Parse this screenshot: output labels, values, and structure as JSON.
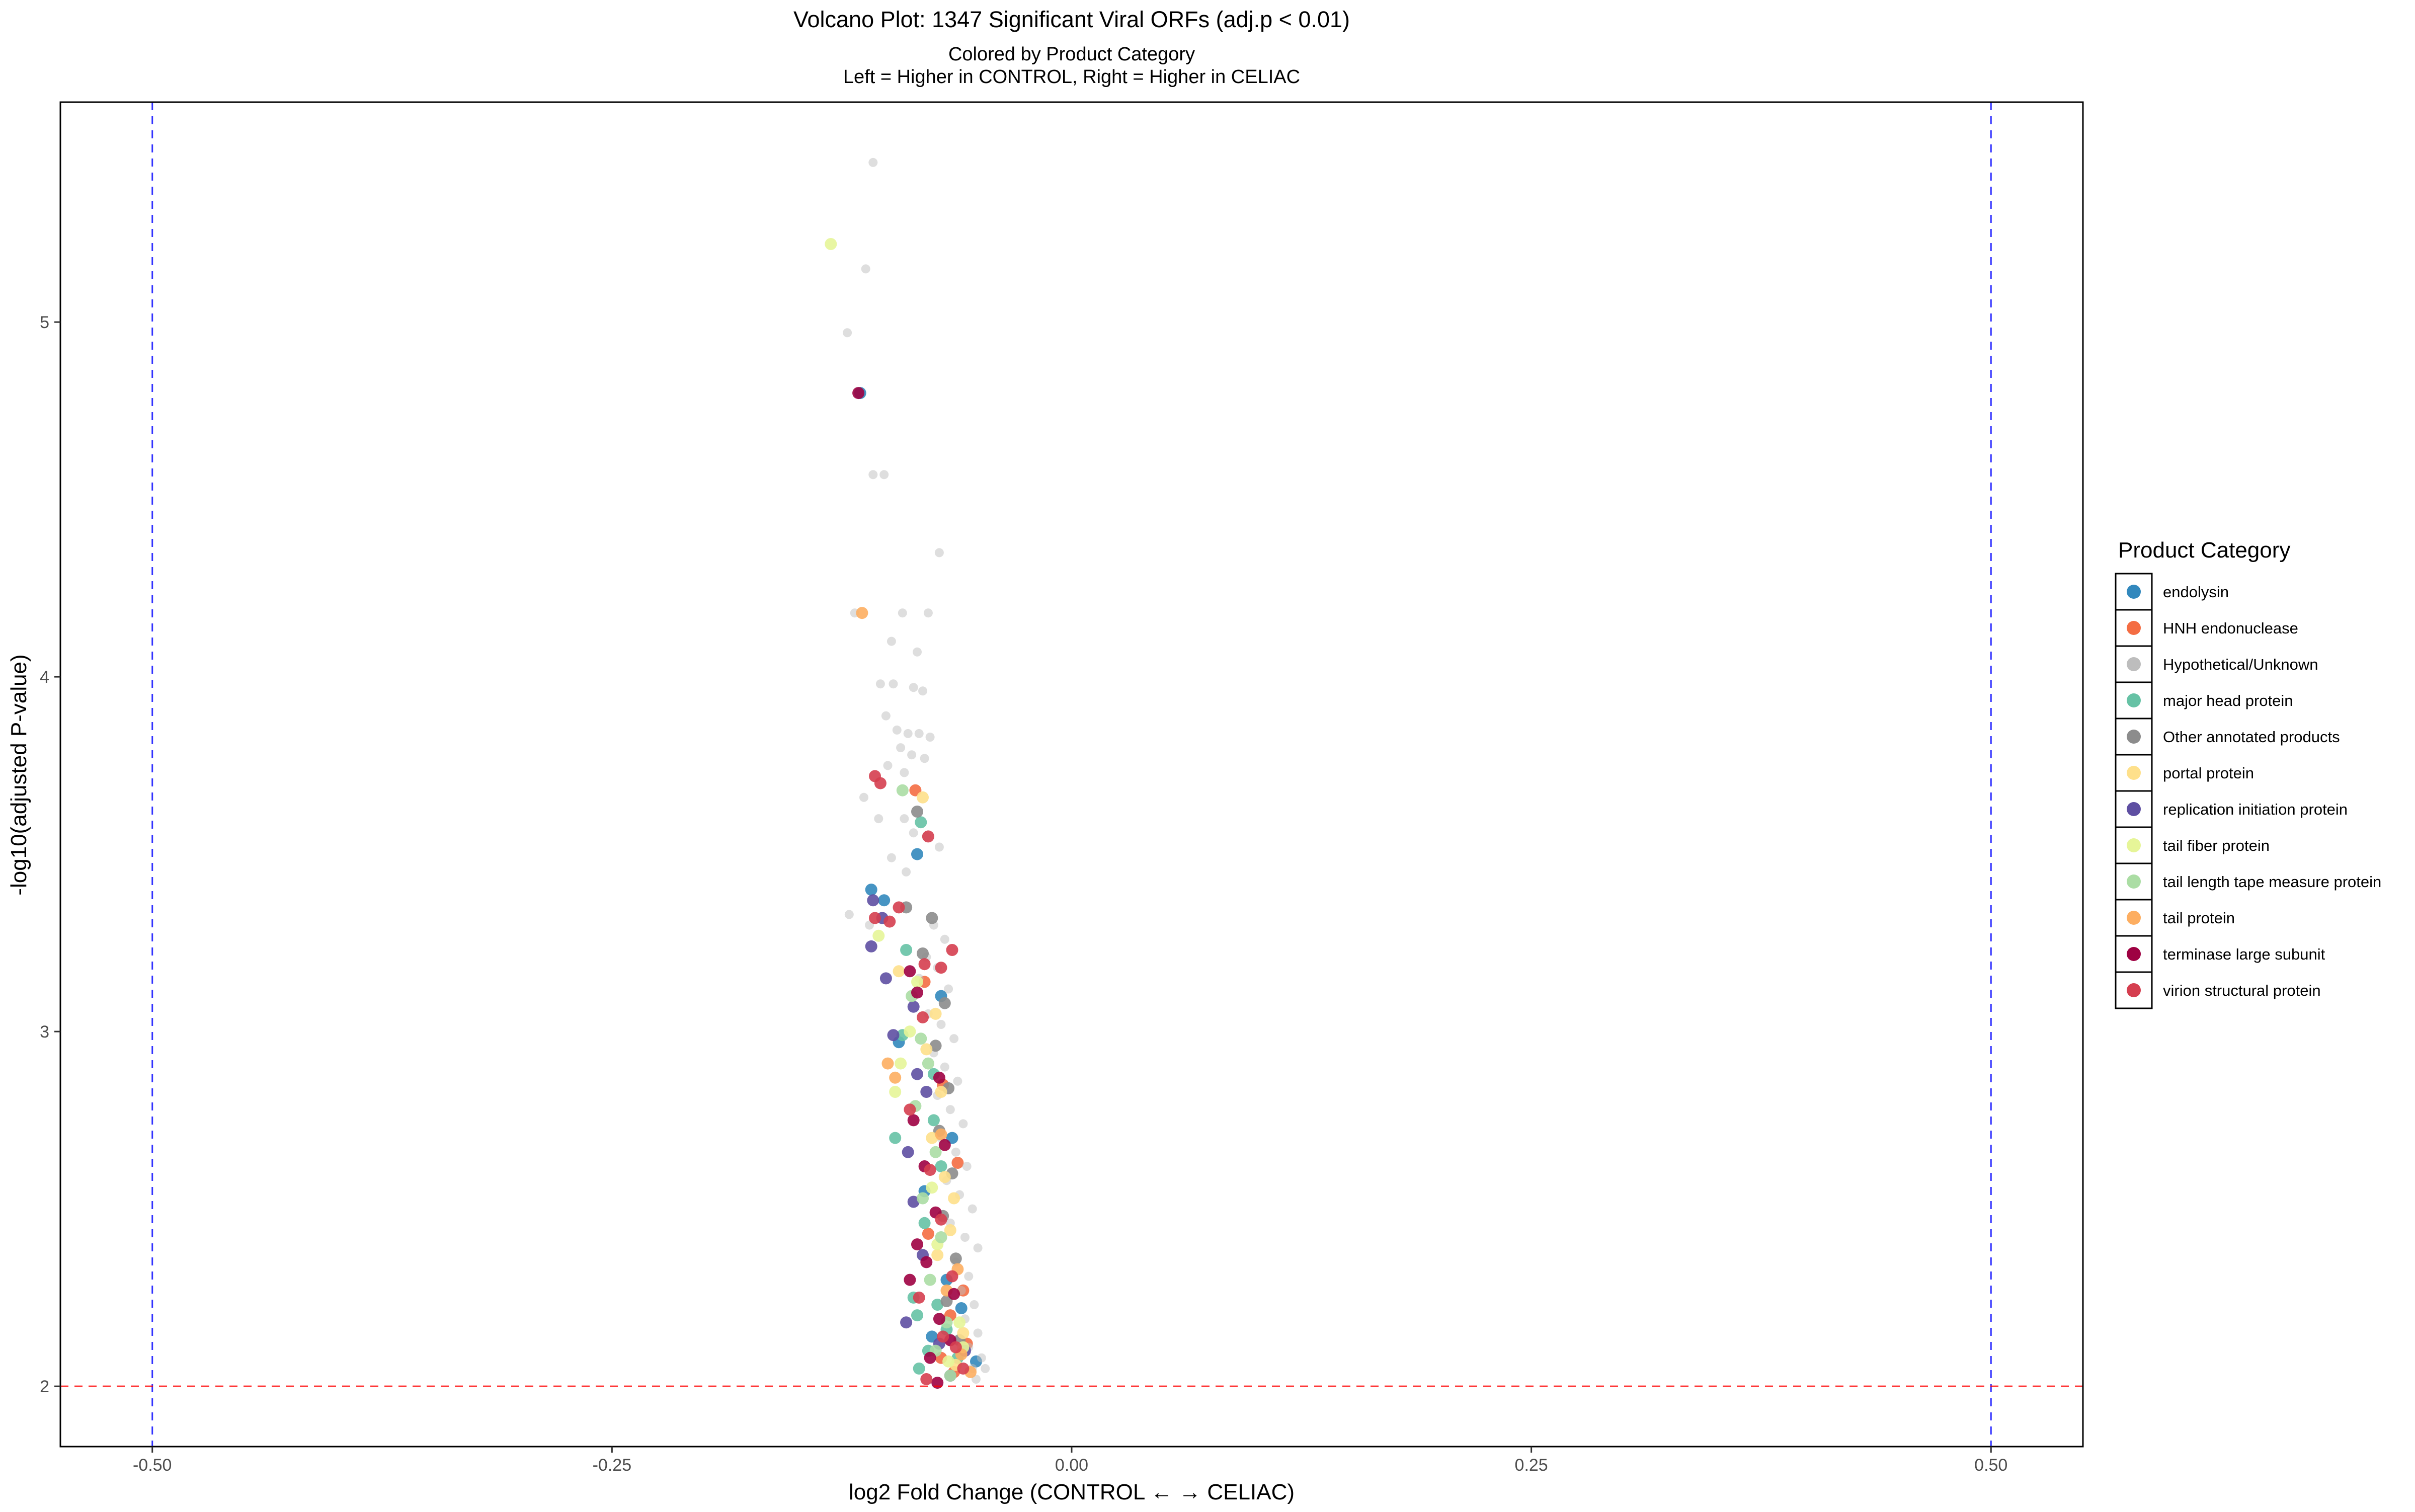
{
  "chart_data": {
    "type": "scatter",
    "title": "Volcano Plot: 1347 Significant Viral ORFs (adj.p < 0.01)",
    "subtitle_line1": "Colored by Product Category",
    "subtitle_line2": "Left = Higher in CONTROL, Right = Higher in CELIAC",
    "xlabel": "log2 Fold Change (CONTROL ← → CELIAC)",
    "ylabel": "-log10(adjusted P-value)",
    "xlim": [
      -0.55,
      0.55
    ],
    "ylim": [
      1.83,
      5.62
    ],
    "x_ticks": [
      -0.5,
      -0.25,
      0.0,
      0.25,
      0.5
    ],
    "x_tick_labels": [
      "-0.50",
      "-0.25",
      "0.00",
      "0.25",
      "0.50"
    ],
    "y_ticks": [
      2,
      3,
      4,
      5
    ],
    "y_tick_labels": [
      "2",
      "3",
      "4",
      "5"
    ],
    "grid": false,
    "reference_lines": {
      "vertical": [
        -0.5,
        0.5
      ],
      "vertical_color": "#0000ff",
      "horizontal": [
        2
      ],
      "horizontal_color": "#ff0000",
      "style": "dashed"
    },
    "legend": {
      "title": "Product Category",
      "placement": "right"
    },
    "series": [
      {
        "name": "endolysin",
        "color": "#3288bd",
        "points": [
          [
            -0.115,
            4.8
          ],
          [
            -0.084,
            3.5
          ],
          [
            -0.109,
            3.4
          ],
          [
            -0.102,
            3.37
          ],
          [
            -0.071,
            3.1
          ],
          [
            -0.094,
            2.97
          ],
          [
            -0.065,
            2.7
          ],
          [
            -0.08,
            2.55
          ],
          [
            -0.068,
            2.3
          ],
          [
            -0.06,
            2.22
          ],
          [
            -0.076,
            2.14
          ],
          [
            -0.052,
            2.07
          ]
        ]
      },
      {
        "name": "HNH endonuclease",
        "color": "#f46d43",
        "points": [
          [
            -0.085,
            3.68
          ],
          [
            -0.08,
            3.14
          ],
          [
            -0.07,
            2.85
          ],
          [
            -0.062,
            2.63
          ],
          [
            -0.078,
            2.43
          ],
          [
            -0.059,
            2.27
          ],
          [
            -0.066,
            2.2
          ],
          [
            -0.057,
            2.12
          ],
          [
            -0.071,
            2.08
          ],
          [
            -0.064,
            2.04
          ]
        ]
      },
      {
        "name": "Hypothetical/Unknown",
        "color": "#bdbdbd",
        "points": [
          [
            -0.108,
            5.45
          ],
          [
            -0.112,
            5.15
          ],
          [
            -0.122,
            4.97
          ],
          [
            -0.108,
            4.57
          ],
          [
            -0.102,
            4.57
          ],
          [
            -0.072,
            4.35
          ],
          [
            -0.118,
            4.18
          ],
          [
            -0.092,
            4.18
          ],
          [
            -0.078,
            4.18
          ],
          [
            -0.098,
            4.1
          ],
          [
            -0.084,
            4.07
          ],
          [
            -0.104,
            3.98
          ],
          [
            -0.097,
            3.98
          ],
          [
            -0.086,
            3.97
          ],
          [
            -0.081,
            3.96
          ],
          [
            -0.101,
            3.89
          ],
          [
            -0.095,
            3.85
          ],
          [
            -0.089,
            3.84
          ],
          [
            -0.083,
            3.84
          ],
          [
            -0.077,
            3.83
          ],
          [
            -0.093,
            3.8
          ],
          [
            -0.087,
            3.78
          ],
          [
            -0.08,
            3.77
          ],
          [
            -0.1,
            3.75
          ],
          [
            -0.091,
            3.73
          ],
          [
            -0.113,
            3.66
          ],
          [
            -0.105,
            3.6
          ],
          [
            -0.091,
            3.6
          ],
          [
            -0.086,
            3.56
          ],
          [
            -0.079,
            3.55
          ],
          [
            -0.072,
            3.52
          ],
          [
            -0.098,
            3.49
          ],
          [
            -0.09,
            3.45
          ],
          [
            -0.121,
            3.33
          ],
          [
            -0.11,
            3.3
          ],
          [
            -0.075,
            3.3
          ],
          [
            -0.069,
            3.26
          ],
          [
            -0.079,
            3.21
          ],
          [
            -0.073,
            3.18
          ],
          [
            -0.083,
            3.15
          ],
          [
            -0.067,
            3.12
          ],
          [
            -0.078,
            3.05
          ],
          [
            -0.071,
            3.02
          ],
          [
            -0.064,
            2.98
          ],
          [
            -0.075,
            2.94
          ],
          [
            -0.069,
            2.9
          ],
          [
            -0.062,
            2.86
          ],
          [
            -0.073,
            2.82
          ],
          [
            -0.066,
            2.78
          ],
          [
            -0.059,
            2.74
          ],
          [
            -0.071,
            2.7
          ],
          [
            -0.063,
            2.66
          ],
          [
            -0.057,
            2.62
          ],
          [
            -0.068,
            2.58
          ],
          [
            -0.061,
            2.54
          ],
          [
            -0.054,
            2.5
          ],
          [
            -0.066,
            2.46
          ],
          [
            -0.058,
            2.42
          ],
          [
            -0.051,
            2.39
          ],
          [
            -0.063,
            2.35
          ],
          [
            -0.056,
            2.31
          ],
          [
            -0.06,
            2.27
          ],
          [
            -0.053,
            2.23
          ],
          [
            -0.058,
            2.19
          ],
          [
            -0.051,
            2.15
          ],
          [
            -0.056,
            2.11
          ],
          [
            -0.049,
            2.08
          ],
          [
            -0.054,
            2.05
          ],
          [
            -0.047,
            2.05
          ],
          [
            -0.052,
            2.02
          ]
        ]
      },
      {
        "name": "major head protein",
        "color": "#66c2a5",
        "points": [
          [
            -0.082,
            3.59
          ],
          [
            -0.09,
            3.23
          ],
          [
            -0.092,
            2.99
          ],
          [
            -0.075,
            2.88
          ],
          [
            -0.075,
            2.75
          ],
          [
            -0.096,
            2.7
          ],
          [
            -0.071,
            2.62
          ],
          [
            -0.08,
            2.46
          ],
          [
            -0.086,
            2.25
          ],
          [
            -0.073,
            2.23
          ],
          [
            -0.084,
            2.2
          ],
          [
            -0.068,
            2.16
          ],
          [
            -0.078,
            2.1
          ],
          [
            -0.062,
            2.08
          ],
          [
            -0.083,
            2.05
          ]
        ]
      },
      {
        "name": "Other annotated products",
        "color": "#8c8c8c",
        "points": [
          [
            -0.084,
            3.62
          ],
          [
            -0.09,
            3.35
          ],
          [
            -0.076,
            3.32
          ],
          [
            -0.081,
            3.22
          ],
          [
            -0.069,
            3.08
          ],
          [
            -0.074,
            2.96
          ],
          [
            -0.067,
            2.84
          ],
          [
            -0.072,
            2.72
          ],
          [
            -0.065,
            2.6
          ],
          [
            -0.07,
            2.48
          ],
          [
            -0.063,
            2.36
          ],
          [
            -0.068,
            2.24
          ],
          [
            -0.061,
            2.13
          ]
        ]
      },
      {
        "name": "portal protein",
        "color": "#fee08b",
        "points": [
          [
            -0.081,
            3.66
          ],
          [
            -0.094,
            3.17
          ],
          [
            -0.074,
            3.05
          ],
          [
            -0.079,
            2.95
          ],
          [
            -0.071,
            2.83
          ],
          [
            -0.076,
            2.7
          ],
          [
            -0.069,
            2.59
          ],
          [
            -0.064,
            2.53
          ],
          [
            -0.066,
            2.44
          ],
          [
            -0.073,
            2.37
          ],
          [
            -0.059,
            2.15
          ],
          [
            -0.063,
            2.06
          ]
        ]
      },
      {
        "name": "replication initiation protein",
        "color": "#5e4fa2",
        "points": [
          [
            -0.108,
            3.37
          ],
          [
            -0.103,
            3.32
          ],
          [
            -0.109,
            3.24
          ],
          [
            -0.101,
            3.15
          ],
          [
            -0.086,
            3.07
          ],
          [
            -0.097,
            2.99
          ],
          [
            -0.084,
            2.88
          ],
          [
            -0.079,
            2.83
          ],
          [
            -0.089,
            2.66
          ],
          [
            -0.086,
            2.52
          ],
          [
            -0.081,
            2.37
          ],
          [
            -0.09,
            2.18
          ],
          [
            -0.072,
            2.12
          ],
          [
            -0.066,
            2.03
          ],
          [
            -0.058,
            2.1
          ]
        ]
      },
      {
        "name": "tail fiber protein",
        "color": "#e6f598",
        "points": [
          [
            -0.131,
            5.22
          ],
          [
            -0.105,
            3.27
          ],
          [
            -0.084,
            3.14
          ],
          [
            -0.088,
            3.0
          ],
          [
            -0.093,
            2.91
          ],
          [
            -0.096,
            2.83
          ],
          [
            -0.076,
            2.56
          ],
          [
            -0.073,
            2.4
          ],
          [
            -0.061,
            2.18
          ],
          [
            -0.059,
            2.11
          ],
          [
            -0.067,
            2.07
          ]
        ]
      },
      {
        "name": "tail length tape measure protein",
        "color": "#abdda4",
        "points": [
          [
            -0.092,
            3.68
          ],
          [
            -0.087,
            3.1
          ],
          [
            -0.082,
            2.98
          ],
          [
            -0.078,
            2.91
          ],
          [
            -0.085,
            2.79
          ],
          [
            -0.074,
            2.66
          ],
          [
            -0.081,
            2.53
          ],
          [
            -0.071,
            2.42
          ],
          [
            -0.077,
            2.3
          ],
          [
            -0.068,
            2.18
          ],
          [
            -0.074,
            2.1
          ],
          [
            -0.066,
            2.03
          ]
        ]
      },
      {
        "name": "tail protein",
        "color": "#fdae61",
        "points": [
          [
            -0.114,
            4.18
          ],
          [
            -0.1,
            2.91
          ],
          [
            -0.096,
            2.87
          ],
          [
            -0.071,
            2.71
          ],
          [
            -0.062,
            2.33
          ],
          [
            -0.068,
            2.27
          ],
          [
            -0.06,
            2.09
          ],
          [
            -0.055,
            2.04
          ]
        ]
      },
      {
        "name": "terminase large subunit",
        "color": "#9e0142",
        "points": [
          [
            -0.116,
            4.8
          ],
          [
            -0.088,
            3.17
          ],
          [
            -0.084,
            3.11
          ],
          [
            -0.072,
            2.87
          ],
          [
            -0.086,
            2.75
          ],
          [
            -0.069,
            2.68
          ],
          [
            -0.08,
            2.62
          ],
          [
            -0.074,
            2.49
          ],
          [
            -0.084,
            2.4
          ],
          [
            -0.079,
            2.35
          ],
          [
            -0.088,
            2.3
          ],
          [
            -0.064,
            2.26
          ],
          [
            -0.072,
            2.19
          ],
          [
            -0.066,
            2.13
          ],
          [
            -0.077,
            2.08
          ],
          [
            -0.073,
            2.01
          ]
        ]
      },
      {
        "name": "virion structural protein",
        "color": "#d53e4f",
        "points": [
          [
            -0.107,
            3.72
          ],
          [
            -0.104,
            3.7
          ],
          [
            -0.078,
            3.55
          ],
          [
            -0.107,
            3.32
          ],
          [
            -0.099,
            3.31
          ],
          [
            -0.094,
            3.35
          ],
          [
            -0.08,
            3.19
          ],
          [
            -0.071,
            3.18
          ],
          [
            -0.081,
            3.04
          ],
          [
            -0.065,
            3.23
          ],
          [
            -0.088,
            2.78
          ],
          [
            -0.077,
            2.61
          ],
          [
            -0.071,
            2.47
          ],
          [
            -0.065,
            2.31
          ],
          [
            -0.083,
            2.25
          ],
          [
            -0.07,
            2.14
          ],
          [
            -0.063,
            2.11
          ],
          [
            -0.079,
            2.02
          ],
          [
            -0.059,
            2.05
          ]
        ]
      }
    ]
  }
}
